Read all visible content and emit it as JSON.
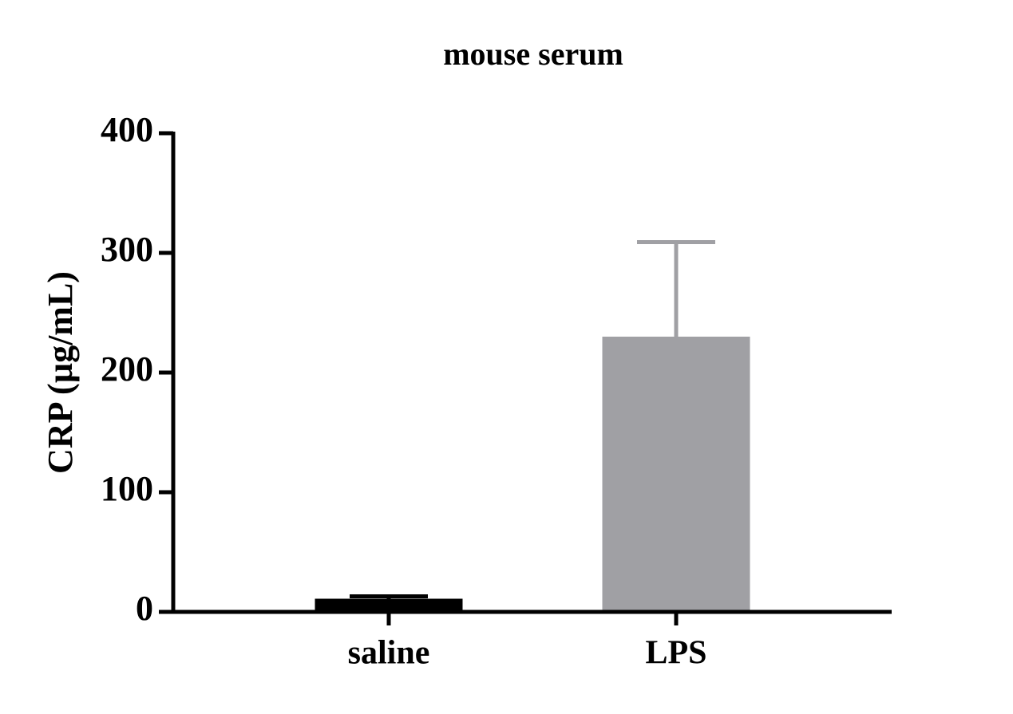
{
  "chart_data": {
    "type": "bar",
    "title": "mouse serum",
    "y_label": "CRP (µg/mL)",
    "categories": [
      "saline",
      "LPS"
    ],
    "values": [
      11,
      230
    ],
    "errors": [
      2,
      79
    ],
    "colors": [
      "#000000",
      "#a0a0a4"
    ],
    "ylim": [
      0,
      400
    ],
    "yticks": [
      0,
      100,
      200,
      300,
      400
    ],
    "grid": false
  }
}
